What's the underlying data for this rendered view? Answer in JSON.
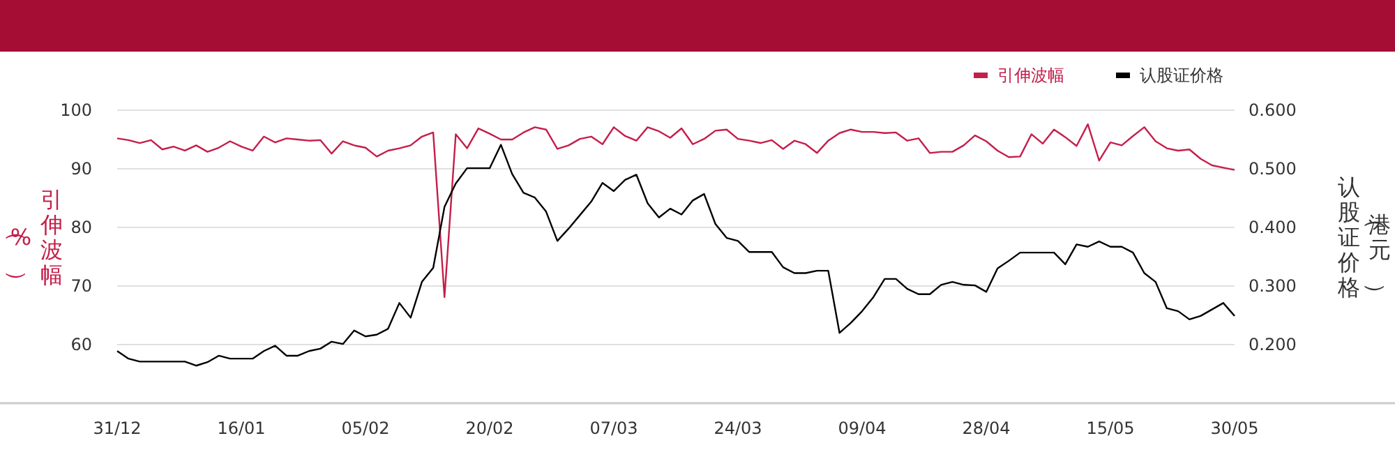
{
  "chart_data": {
    "type": "line",
    "ylabel": "引伸波幅（%）",
    "y2label": "认股证价格（港元）",
    "categories": [
      "31/12",
      null,
      null,
      null,
      null,
      null,
      null,
      null,
      null,
      null,
      null,
      "16/01",
      null,
      null,
      null,
      null,
      null,
      null,
      null,
      null,
      null,
      null,
      "05/02",
      null,
      null,
      null,
      null,
      null,
      null,
      null,
      null,
      null,
      null,
      "20/02",
      null,
      null,
      null,
      null,
      null,
      null,
      null,
      null,
      null,
      null,
      "07/03",
      null,
      null,
      null,
      null,
      null,
      null,
      null,
      null,
      null,
      null,
      "24/03",
      null,
      null,
      null,
      null,
      null,
      null,
      null,
      null,
      null,
      null,
      "09/04",
      null,
      null,
      null,
      null,
      null,
      null,
      null,
      null,
      null,
      null,
      "28/04",
      null,
      null,
      null,
      null,
      null,
      null,
      null,
      null,
      null,
      null,
      "15/05",
      null,
      null,
      null,
      null,
      null,
      null,
      null,
      null,
      null,
      null,
      "30/05"
    ],
    "ylim": [
      50,
      100
    ],
    "yticks": [
      60,
      70,
      80,
      90,
      100
    ],
    "y2lim": [
      0.1,
      0.6
    ],
    "y2ticks": [
      {
        "value": 0.2,
        "label": "0.200"
      },
      {
        "value": 0.3,
        "label": "0.300"
      },
      {
        "value": 0.4,
        "label": "0.400"
      },
      {
        "value": 0.5,
        "label": "0.500"
      },
      {
        "value": 0.6,
        "label": "0.600"
      }
    ],
    "grid": "y",
    "legend": "top right",
    "marker": "none",
    "series": [
      {
        "name": "引伸波幅",
        "color": "#c41e4a",
        "values": [
          95.2,
          94.9,
          94.4,
          94.9,
          93.3,
          93.8,
          93.1,
          94.0,
          92.9,
          93.6,
          94.7,
          93.8,
          93.1,
          95.5,
          94.5,
          95.2,
          95.0,
          94.8,
          94.9,
          92.6,
          94.7,
          94.0,
          93.6,
          92.1,
          93.1,
          93.5,
          94.0,
          95.5,
          96.2,
          68.1,
          95.9,
          93.5,
          96.9,
          96.0,
          95.0,
          95.0,
          96.2,
          97.1,
          96.7,
          93.4,
          94.0,
          95.1,
          95.5,
          94.2,
          97.1,
          95.6,
          94.8,
          97.1,
          96.4,
          95.3,
          96.9,
          94.2,
          95.1,
          96.5,
          96.7,
          95.1,
          94.8,
          94.4,
          94.9,
          93.4,
          94.8,
          94.2,
          92.7,
          94.8,
          96.1,
          96.7,
          96.3,
          96.3,
          96.1,
          96.2,
          94.8,
          95.2,
          92.7,
          92.9,
          92.9,
          94.0,
          95.7,
          94.7,
          93.1,
          92.0,
          92.1,
          95.9,
          94.3,
          96.7,
          95.4,
          93.9,
          97.6,
          91.4,
          94.5,
          94.0,
          95.6,
          97.1,
          94.7,
          93.5,
          93.1,
          93.3,
          91.7,
          90.6,
          90.2,
          89.8
        ]
      },
      {
        "name": "认股证价格",
        "color": "#000000",
        "axis": "y2",
        "values": [
          0.189,
          0.176,
          0.171,
          0.171,
          0.171,
          0.171,
          0.171,
          0.164,
          0.17,
          0.181,
          0.176,
          0.176,
          0.176,
          0.189,
          0.198,
          0.181,
          0.181,
          0.189,
          0.193,
          0.205,
          0.201,
          0.224,
          0.214,
          0.217,
          0.227,
          0.271,
          0.246,
          0.307,
          0.331,
          0.435,
          0.475,
          0.501,
          0.501,
          0.501,
          0.541,
          0.491,
          0.459,
          0.451,
          0.427,
          0.377,
          0.398,
          0.421,
          0.444,
          0.476,
          0.462,
          0.481,
          0.49,
          0.441,
          0.417,
          0.432,
          0.422,
          0.446,
          0.457,
          0.406,
          0.382,
          0.377,
          0.358,
          0.358,
          0.358,
          0.332,
          0.322,
          0.322,
          0.326,
          0.326,
          0.22,
          0.237,
          0.257,
          0.281,
          0.312,
          0.312,
          0.295,
          0.286,
          0.286,
          0.302,
          0.307,
          0.302,
          0.301,
          0.29,
          0.33,
          0.343,
          0.357,
          0.357,
          0.357,
          0.357,
          0.337,
          0.371,
          0.367,
          0.376,
          0.367,
          0.367,
          0.357,
          0.322,
          0.307,
          0.262,
          0.257,
          0.243,
          0.249,
          0.26,
          0.271,
          0.249
        ]
      }
    ]
  }
}
